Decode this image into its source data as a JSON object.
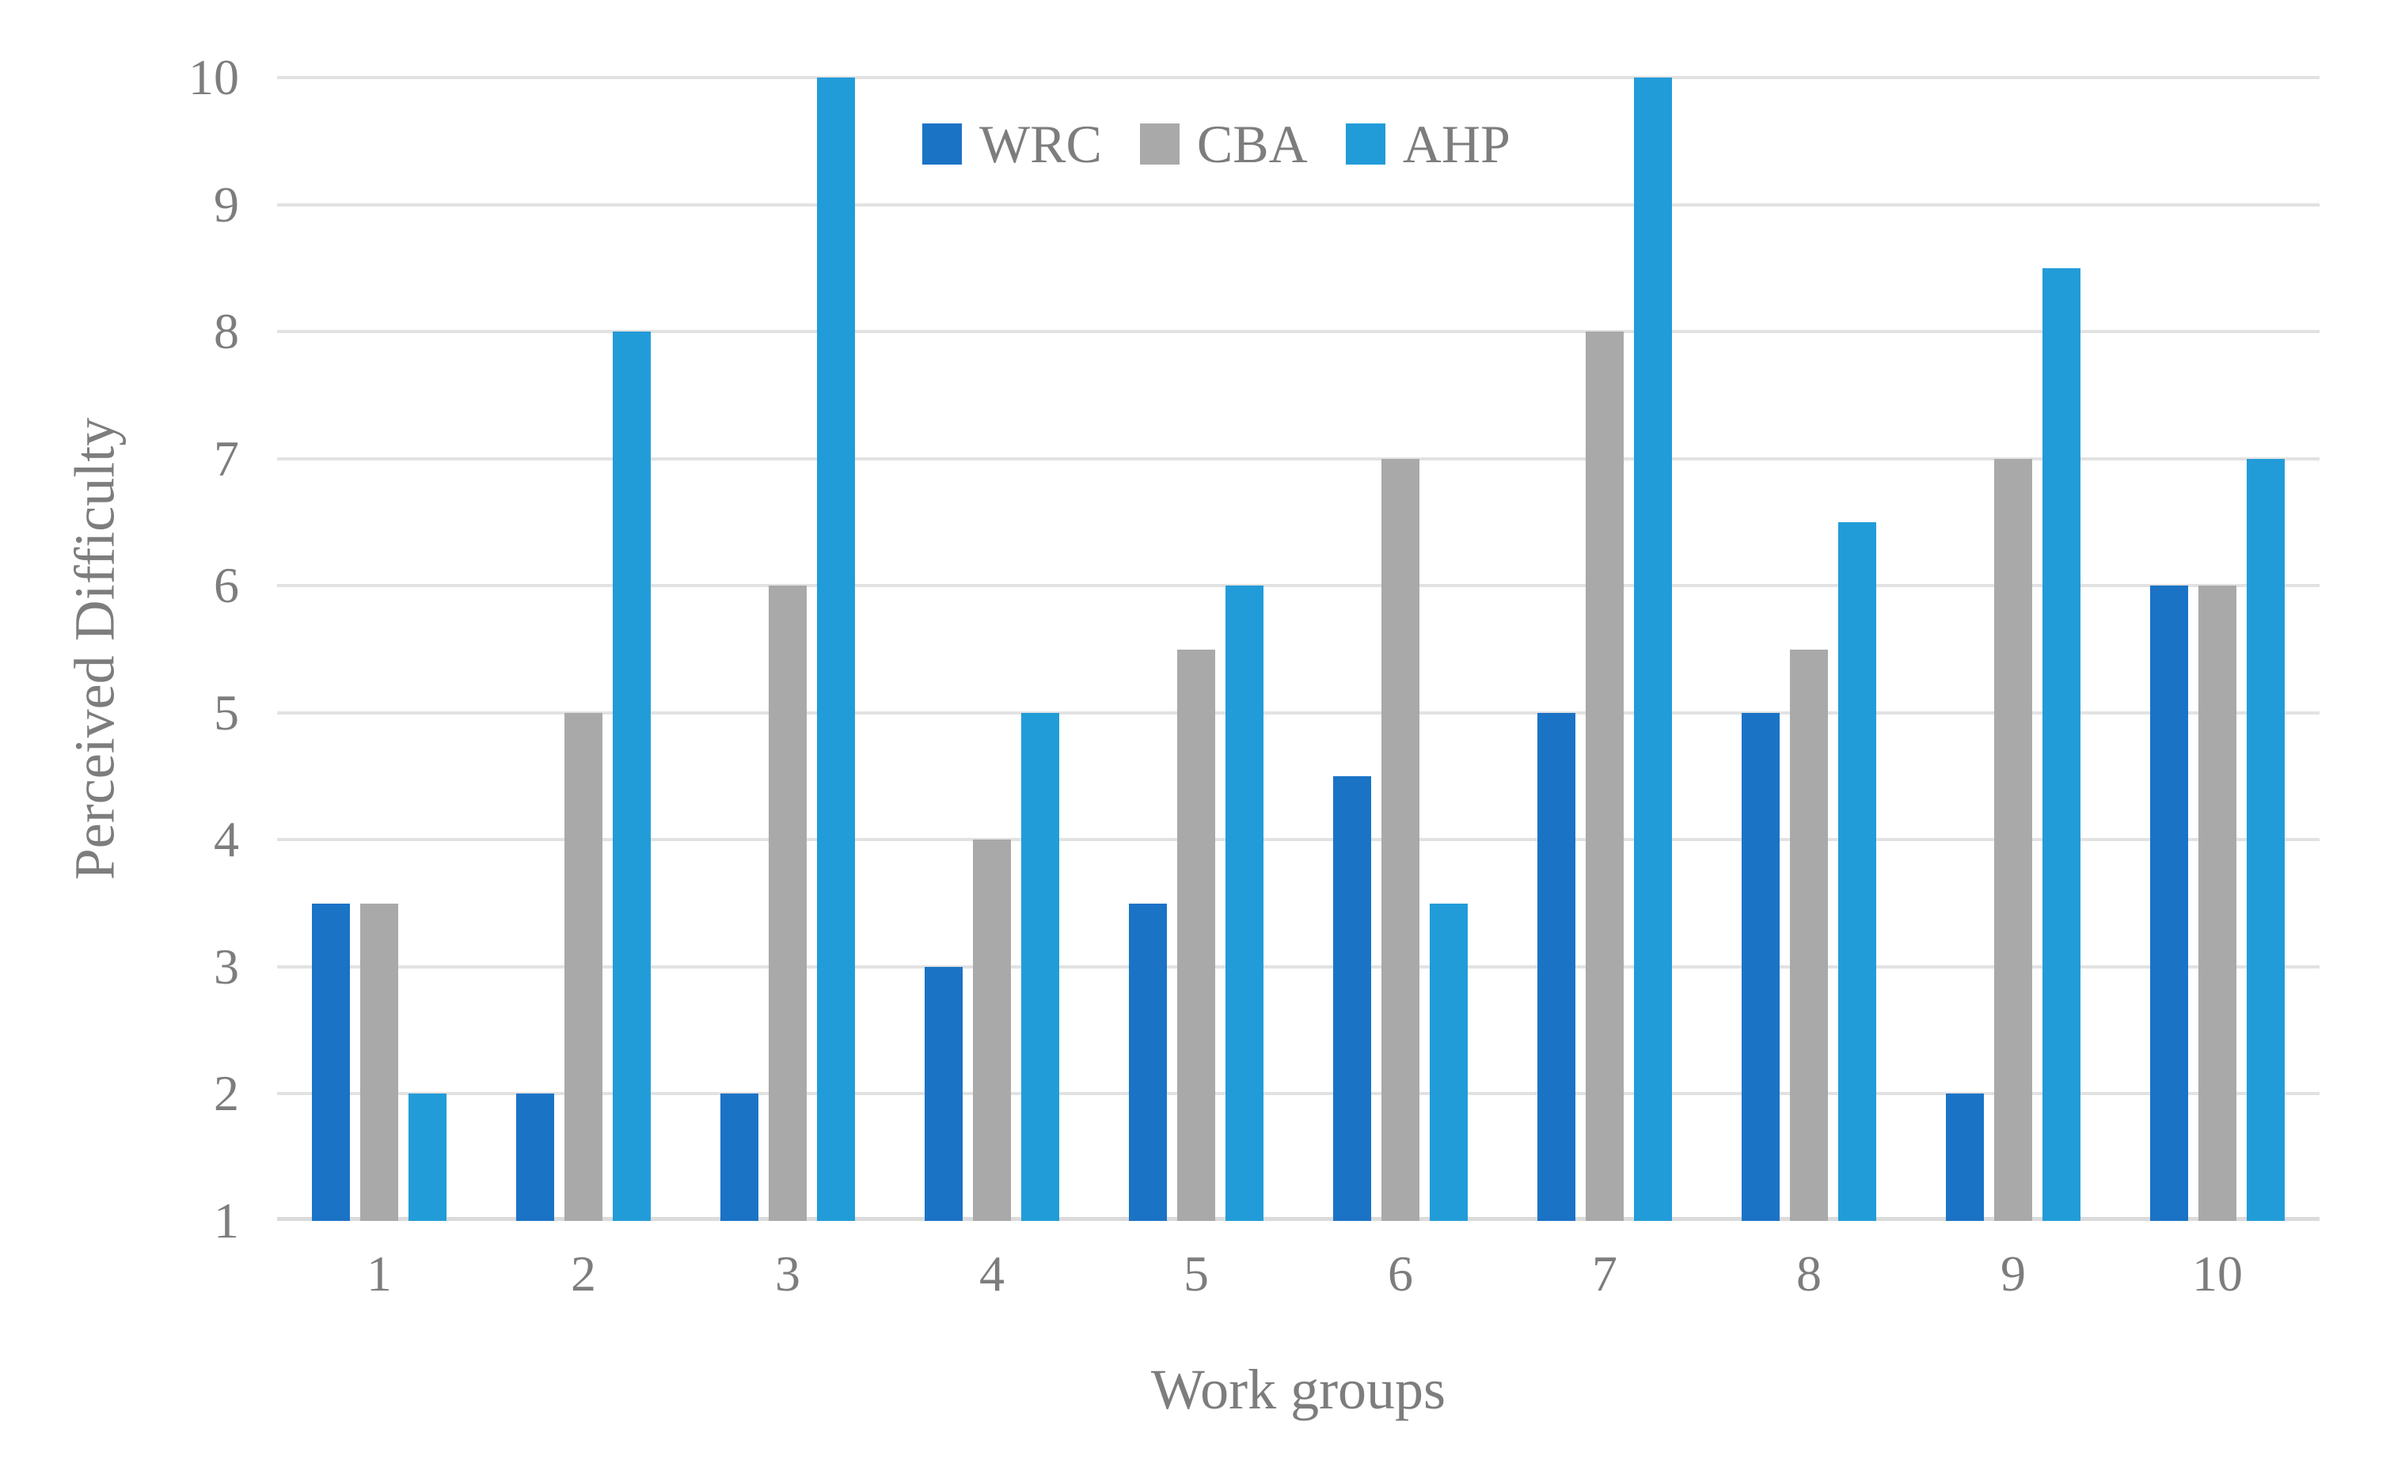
{
  "chart_data": {
    "type": "bar",
    "title": "",
    "xlabel": "Work groups",
    "ylabel": "Perceived Difficulty",
    "ylim": [
      1,
      10
    ],
    "y_ticks": [
      1,
      2,
      3,
      4,
      5,
      6,
      7,
      8,
      9,
      10
    ],
    "grid": "horizontal",
    "legend_position": "top-center",
    "categories": [
      "1",
      "2",
      "3",
      "4",
      "5",
      "6",
      "7",
      "8",
      "9",
      "10"
    ],
    "series": [
      {
        "name": "WRC",
        "color": "#1B73C6",
        "values": [
          3.5,
          2,
          2,
          3,
          3.5,
          4.5,
          5,
          5,
          2,
          6
        ]
      },
      {
        "name": "CBA",
        "color": "#A9A9A9",
        "values": [
          3.5,
          5,
          6,
          4,
          5.5,
          7,
          8,
          5.5,
          7,
          6
        ]
      },
      {
        "name": "AHP",
        "color": "#229CD8",
        "values": [
          2,
          8,
          10,
          5,
          6,
          3.5,
          10,
          6.5,
          8.5,
          7
        ]
      }
    ],
    "colors": {
      "gridline": "#E2E2E2",
      "axis_line": "#DBDBDB",
      "text": "#7D7D7D"
    }
  }
}
